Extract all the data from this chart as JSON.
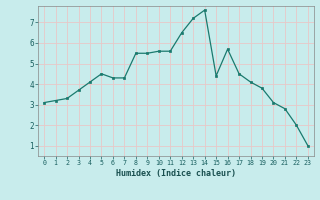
{
  "x": [
    0,
    1,
    2,
    3,
    4,
    5,
    6,
    7,
    8,
    9,
    10,
    11,
    12,
    13,
    14,
    15,
    16,
    17,
    18,
    19,
    20,
    21,
    22,
    23
  ],
  "y": [
    3.1,
    3.2,
    3.3,
    3.7,
    4.1,
    4.5,
    4.3,
    4.3,
    5.5,
    5.5,
    5.6,
    5.6,
    6.5,
    7.2,
    7.6,
    4.4,
    5.7,
    4.5,
    4.1,
    3.8,
    3.1,
    2.8,
    2.0,
    1.0
  ],
  "xlabel": "Humidex (Indice chaleur)",
  "xlim": [
    -0.5,
    23.5
  ],
  "ylim": [
    0.5,
    7.8
  ],
  "yticks": [
    1,
    2,
    3,
    4,
    5,
    6,
    7
  ],
  "xticks": [
    0,
    1,
    2,
    3,
    4,
    5,
    6,
    7,
    8,
    9,
    10,
    11,
    12,
    13,
    14,
    15,
    16,
    17,
    18,
    19,
    20,
    21,
    22,
    23
  ],
  "line_color": "#1a7a6e",
  "marker_color": "#1a7a6e",
  "bg_color": "#c8ecec",
  "grid_major_color": "#e8c8c8",
  "grid_minor_color": "#e8c8c8",
  "tick_label_color": "#1a6060",
  "xlabel_color": "#1a5050"
}
